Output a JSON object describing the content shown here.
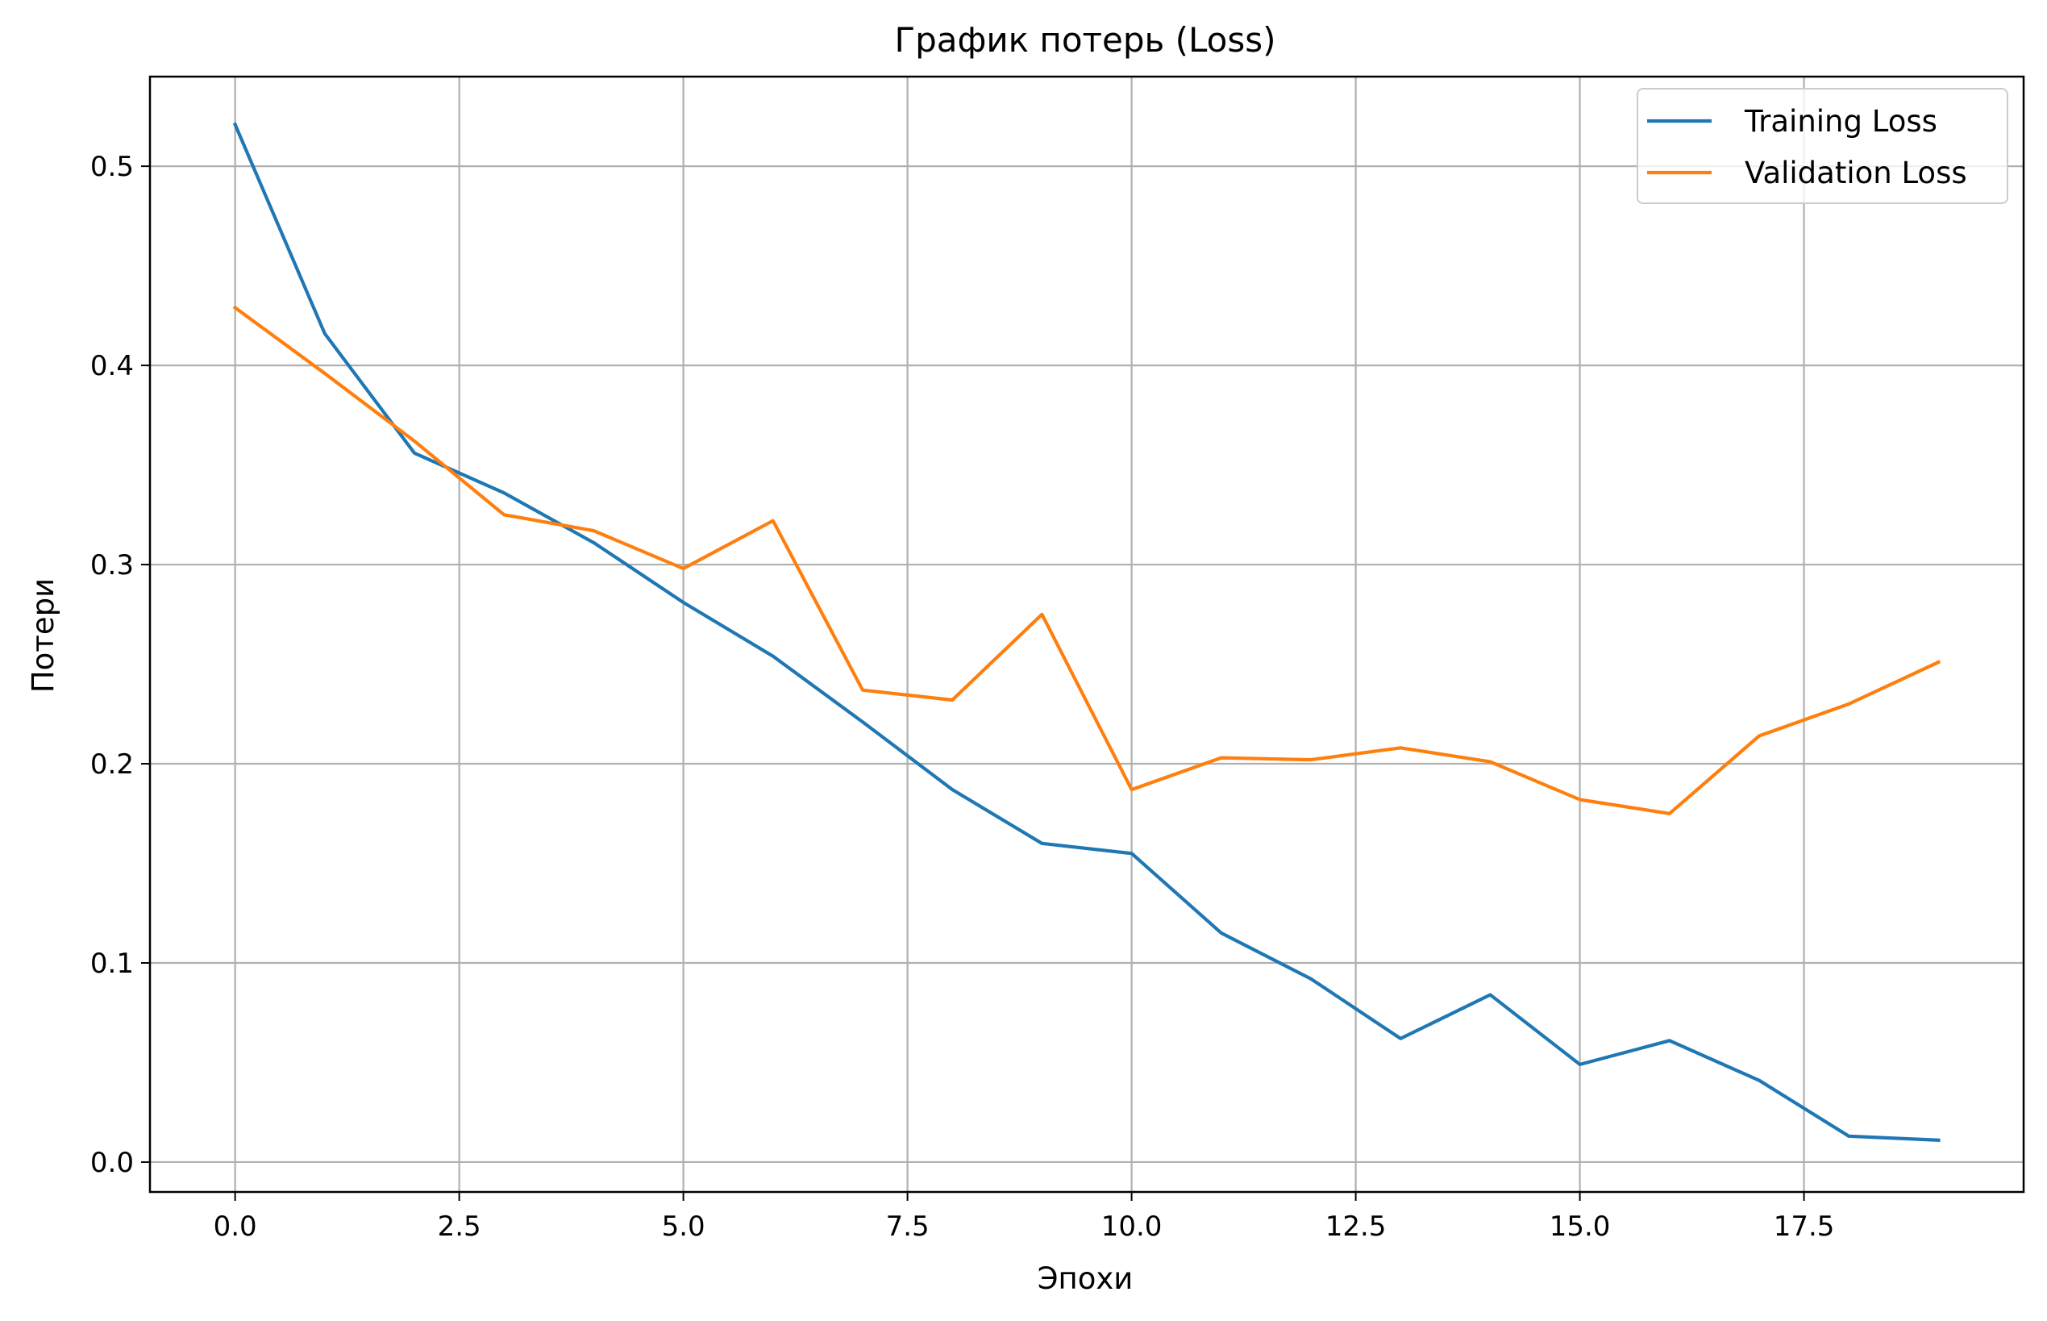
{
  "chart_data": {
    "type": "line",
    "title": "График потерь (Loss)",
    "xlabel": "Эпохи",
    "ylabel": "Потери",
    "xlim": [
      -0.95,
      19.95
    ],
    "ylim": [
      -0.015,
      0.545
    ],
    "xticks": [
      0.0,
      2.5,
      5.0,
      7.5,
      10.0,
      12.5,
      15.0,
      17.5
    ],
    "xtick_labels": [
      "0.0",
      "2.5",
      "5.0",
      "7.5",
      "10.0",
      "12.5",
      "15.0",
      "17.5"
    ],
    "yticks": [
      0.0,
      0.1,
      0.2,
      0.3,
      0.4,
      0.5
    ],
    "ytick_labels": [
      "0.0",
      "0.1",
      "0.2",
      "0.3",
      "0.4",
      "0.5"
    ],
    "grid": true,
    "legend_position": "top-right",
    "x": [
      0,
      1,
      2,
      3,
      4,
      5,
      6,
      7,
      8,
      9,
      10,
      11,
      12,
      13,
      14,
      15,
      16,
      17,
      18,
      19
    ],
    "series": [
      {
        "name": "Training Loss",
        "color": "#1f77b4",
        "values": [
          0.521,
          0.416,
          0.356,
          0.336,
          0.311,
          0.281,
          0.254,
          0.221,
          0.187,
          0.16,
          0.155,
          0.115,
          0.092,
          0.062,
          0.084,
          0.049,
          0.061,
          0.041,
          0.013,
          0.011
        ]
      },
      {
        "name": "Validation Loss",
        "color": "#ff7f0e",
        "values": [
          0.429,
          0.396,
          0.362,
          0.325,
          0.317,
          0.298,
          0.322,
          0.237,
          0.232,
          0.275,
          0.187,
          0.203,
          0.202,
          0.208,
          0.201,
          0.182,
          0.175,
          0.214,
          0.23,
          0.251
        ]
      }
    ]
  }
}
